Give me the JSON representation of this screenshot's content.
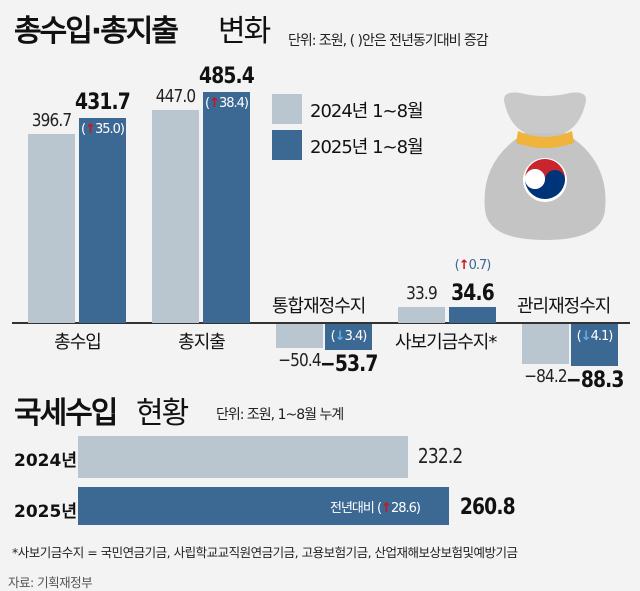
{
  "header": {
    "title": "총수입·총지출",
    "title_light": "변화",
    "unit": "단위: 조원, ( )안은 전년동기대비 증감"
  },
  "legend": [
    {
      "label": "2024년 1~8월",
      "color": "#b9c6cf"
    },
    {
      "label": "2025년 1~8월",
      "color": "#3c6894"
    }
  ],
  "chart_data": [
    {
      "type": "bar",
      "title": "총수입·총지출 변화",
      "unit": "조원",
      "categories": [
        "총수입",
        "총지출",
        "통합재정수지",
        "사보기금수지*",
        "관리재정수지"
      ],
      "series": [
        {
          "name": "2024년 1~8월",
          "values": [
            396.7,
            447.0,
            -50.4,
            33.9,
            -84.2
          ],
          "labels": [
            "396.7",
            "447.0",
            "−50.4",
            "33.9",
            "−84.2"
          ]
        },
        {
          "name": "2025년 1~8월",
          "values": [
            431.7,
            485.4,
            -53.7,
            34.6,
            -88.3
          ],
          "labels": [
            "431.7",
            "485.4",
            "−53.7",
            "34.6",
            "−88.3"
          ]
        }
      ],
      "changes": [
        {
          "dir": "up",
          "text": "35.0"
        },
        {
          "dir": "up",
          "text": "38.4"
        },
        {
          "dir": "down",
          "text": "3.4"
        },
        {
          "dir": "up",
          "text": "0.7"
        },
        {
          "dir": "down",
          "text": "4.1"
        }
      ]
    },
    {
      "type": "bar",
      "orientation": "horizontal",
      "title": "국세수입 현황",
      "unit": "단위: 조원, 1~8월 누계",
      "categories": [
        "2024년",
        "2025년"
      ],
      "values": [
        232.2,
        260.8
      ],
      "labels": [
        "232.2",
        "260.8"
      ],
      "annotation": {
        "prefix": "전년대비",
        "dir": "up",
        "text": "28.6"
      }
    }
  ],
  "section2": {
    "title": "국세수입",
    "title_light": "현황"
  },
  "footnote": "*사보기금수지 = 국민연금기금, 사립학교교직원연금기금, 고용보험기금, 산업재해보상보험및예방기금",
  "source": "자료: 기획재정부"
}
